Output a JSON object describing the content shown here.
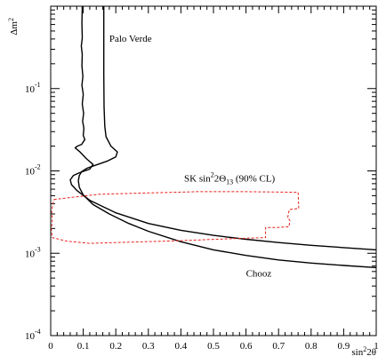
{
  "chart_data": {
    "type": "line",
    "title": "",
    "xlabel_base": "sin",
    "xlabel_sup": "2",
    "xlabel_rest": "2θ",
    "ylabel_base": "Δm",
    "ylabel_sup": "2",
    "xlim": [
      0,
      1
    ],
    "ylim": [
      0.0001,
      1
    ],
    "yscale": "log",
    "x_ticks": [
      {
        "value": 0,
        "label": "0"
      },
      {
        "value": 0.1,
        "label": "0.1"
      },
      {
        "value": 0.2,
        "label": "0.2"
      },
      {
        "value": 0.3,
        "label": "0.3"
      },
      {
        "value": 0.4,
        "label": "0.4"
      },
      {
        "value": 0.5,
        "label": "0.5"
      },
      {
        "value": 0.6,
        "label": "0.6"
      },
      {
        "value": 0.7,
        "label": "0.7"
      },
      {
        "value": 0.8,
        "label": "0.8"
      },
      {
        "value": 0.9,
        "label": "0.9"
      },
      {
        "value": 1,
        "label": "1"
      }
    ],
    "y_ticks": [
      {
        "value": 0.0001,
        "base": "10",
        "exp": "-4"
      },
      {
        "value": 0.001,
        "base": "10",
        "exp": "-3"
      },
      {
        "value": 0.01,
        "base": "10",
        "exp": "-2"
      },
      {
        "value": 0.1,
        "base": "10",
        "exp": "-1"
      }
    ],
    "grid": false,
    "colors": {
      "frame": "#000000",
      "curves": "#000000",
      "sk_region": "#e8221c"
    },
    "annotations": [
      {
        "id": "palo-verde-label",
        "text": "Palo Verde",
        "x": 0.18,
        "y": 0.37
      },
      {
        "id": "chooz-label",
        "text": "Chooz",
        "x": 0.6,
        "y": 0.00052
      }
    ],
    "sk_label": {
      "prefix": "SK sin",
      "sup": "2",
      "mid": "2Θ",
      "sub": "13",
      "suffix": " (90% CL)",
      "x": 0.41,
      "y": 0.0074
    },
    "series": [
      {
        "name": "Palo Verde",
        "style": "solid",
        "points": [
          [
            0.097,
            1.0
          ],
          [
            0.096,
            0.62
          ],
          [
            0.097,
            0.41
          ],
          [
            0.094,
            0.33
          ],
          [
            0.097,
            0.26
          ],
          [
            0.096,
            0.19
          ],
          [
            0.099,
            0.14
          ],
          [
            0.096,
            0.11
          ],
          [
            0.1,
            0.085
          ],
          [
            0.097,
            0.065
          ],
          [
            0.101,
            0.05
          ],
          [
            0.098,
            0.04
          ],
          [
            0.102,
            0.033
          ],
          [
            0.1,
            0.027
          ],
          [
            0.105,
            0.024
          ],
          [
            0.095,
            0.021
          ],
          [
            0.082,
            0.02
          ],
          [
            0.075,
            0.019
          ],
          [
            0.09,
            0.017
          ],
          [
            0.11,
            0.014
          ],
          [
            0.13,
            0.012
          ],
          [
            0.12,
            0.0105
          ],
          [
            0.088,
            0.0095
          ],
          [
            0.07,
            0.0088
          ],
          [
            0.06,
            0.0078
          ],
          [
            0.064,
            0.0068
          ],
          [
            0.08,
            0.0058
          ],
          [
            0.12,
            0.0044
          ],
          [
            0.2,
            0.0031
          ],
          [
            0.3,
            0.0023
          ],
          [
            0.4,
            0.0019
          ],
          [
            0.5,
            0.00165
          ],
          [
            0.6,
            0.00148
          ],
          [
            0.7,
            0.00135
          ],
          [
            0.8,
            0.00125
          ],
          [
            0.9,
            0.00117
          ],
          [
            1.0,
            0.0011
          ]
        ]
      },
      {
        "name": "Chooz",
        "style": "solid",
        "points": [
          [
            0.163,
            1.0
          ],
          [
            0.163,
            0.4
          ],
          [
            0.163,
            0.15
          ],
          [
            0.164,
            0.06
          ],
          [
            0.166,
            0.035
          ],
          [
            0.17,
            0.026
          ],
          [
            0.185,
            0.02
          ],
          [
            0.205,
            0.017
          ],
          [
            0.2,
            0.0148
          ],
          [
            0.175,
            0.0132
          ],
          [
            0.14,
            0.0118
          ],
          [
            0.112,
            0.0108
          ],
          [
            0.095,
            0.0098
          ],
          [
            0.088,
            0.0088
          ],
          [
            0.085,
            0.0076
          ],
          [
            0.088,
            0.0063
          ],
          [
            0.1,
            0.0051
          ],
          [
            0.13,
            0.0039
          ],
          [
            0.18,
            0.003
          ],
          [
            0.24,
            0.0023
          ],
          [
            0.3,
            0.00185
          ],
          [
            0.4,
            0.00138
          ],
          [
            0.5,
            0.0011
          ],
          [
            0.6,
            0.00094
          ],
          [
            0.7,
            0.00083
          ],
          [
            0.8,
            0.00076
          ],
          [
            0.9,
            0.00071
          ],
          [
            1.0,
            0.00067
          ]
        ]
      },
      {
        "name": "SK region",
        "style": "dashed",
        "closed": true,
        "points": [
          [
            0.01,
            0.0045
          ],
          [
            0.05,
            0.0047
          ],
          [
            0.15,
            0.0052
          ],
          [
            0.3,
            0.0054
          ],
          [
            0.45,
            0.0056
          ],
          [
            0.6,
            0.0056
          ],
          [
            0.76,
            0.0055
          ],
          [
            0.762,
            0.0035
          ],
          [
            0.733,
            0.0034
          ],
          [
            0.728,
            0.0027
          ],
          [
            0.735,
            0.0025
          ],
          [
            0.732,
            0.0021
          ],
          [
            0.69,
            0.00205
          ],
          [
            0.66,
            0.00205
          ],
          [
            0.66,
            0.00155
          ],
          [
            0.55,
            0.0015
          ],
          [
            0.4,
            0.00142
          ],
          [
            0.2,
            0.00135
          ],
          [
            0.12,
            0.00132
          ],
          [
            0.05,
            0.0014
          ],
          [
            0.005,
            0.00155
          ],
          [
            0.002,
            0.0019
          ],
          [
            0.005,
            0.0025
          ],
          [
            0.003,
            0.0032
          ],
          [
            0.006,
            0.0039
          ],
          [
            0.01,
            0.0045
          ]
        ]
      }
    ]
  }
}
